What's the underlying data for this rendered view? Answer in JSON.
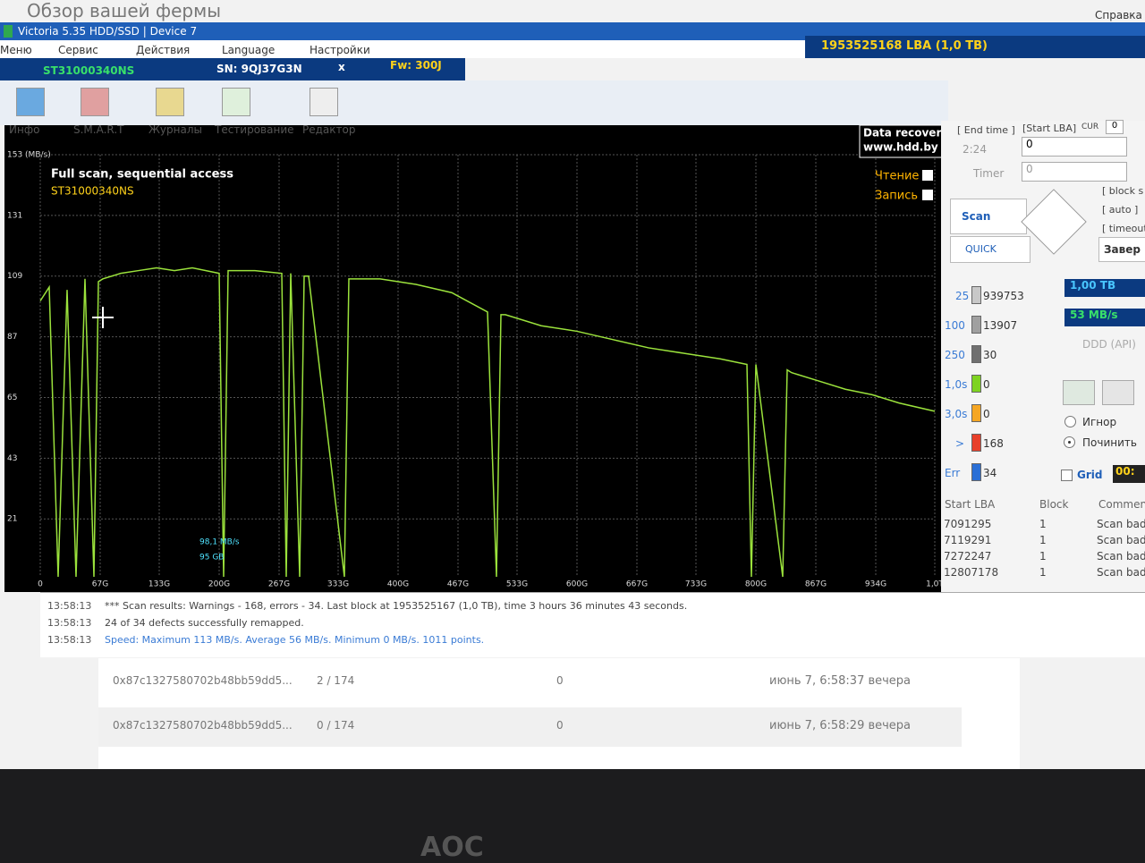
{
  "window": {
    "background_title": "Обзор вашей фермы",
    "help": "Справка",
    "title": "Victoria 5.35 HDD/SSD | Device 7",
    "capacity": "1953525168 LBA (1,0 TB)"
  },
  "menu": [
    "Меню",
    "Сервис",
    "Действия",
    "Language",
    "Настройки"
  ],
  "drive": {
    "model": "ST31000340NS",
    "serial": "SN: 9QJ37G3N",
    "close": "x",
    "firmware": "Fw: 300J"
  },
  "toolbar": [
    "Инфо",
    "S.M.A.R.T",
    "Журналы",
    "Тестирование",
    "Редактор"
  ],
  "chart_data": {
    "type": "line",
    "title": "Full scan, sequential access",
    "subtitle": "ST31000340NS",
    "badge": [
      "Data recovery",
      "www.hdd.by"
    ],
    "write_label": "Запись",
    "annotations": [
      "98,1 MB/s",
      "95 GB"
    ],
    "x": [
      0,
      10,
      20,
      30,
      40,
      50,
      60,
      65,
      70,
      90,
      110,
      130,
      150,
      170,
      200,
      205,
      210,
      240,
      270,
      275,
      280,
      290,
      295,
      300,
      340,
      345,
      350,
      380,
      420,
      460,
      500,
      510,
      515,
      520,
      560,
      600,
      640,
      680,
      720,
      760,
      790,
      795,
      800,
      830,
      835,
      840,
      870,
      900,
      930,
      960,
      1000
    ],
    "series": [
      {
        "name": "Чтение",
        "color": "#9be23c",
        "values": [
          100,
          105,
          0,
          104,
          0,
          108,
          0,
          107,
          108,
          110,
          111,
          112,
          111,
          112,
          110,
          0,
          111,
          111,
          110,
          0,
          110,
          0,
          109,
          109,
          0,
          108,
          108,
          108,
          106,
          103,
          96,
          0,
          95,
          95,
          91,
          89,
          86,
          83,
          81,
          79,
          77,
          0,
          77,
          0,
          75,
          74,
          71,
          68,
          66,
          63,
          60
        ]
      }
    ],
    "xlim": [
      0,
      1000
    ],
    "xticks": [
      {
        "value": 0,
        "label": "0"
      },
      {
        "value": 67,
        "label": "67G"
      },
      {
        "value": 133,
        "label": "133G"
      },
      {
        "value": 200,
        "label": "200G"
      },
      {
        "value": 267,
        "label": "267G"
      },
      {
        "value": 333,
        "label": "333G"
      },
      {
        "value": 400,
        "label": "400G"
      },
      {
        "value": 467,
        "label": "467G"
      },
      {
        "value": 533,
        "label": "533G"
      },
      {
        "value": 600,
        "label": "600G"
      },
      {
        "value": 667,
        "label": "667G"
      },
      {
        "value": 733,
        "label": "733G"
      },
      {
        "value": 800,
        "label": "800G"
      },
      {
        "value": 867,
        "label": "867G"
      },
      {
        "value": 934,
        "label": "934G"
      },
      {
        "value": 1000,
        "label": "1,0T"
      }
    ],
    "ylim": [
      0,
      153
    ],
    "yticks": [
      {
        "value": 153,
        "label": "153 (MB/s)"
      },
      131,
      109,
      87,
      65,
      43,
      21
    ],
    "grid": true
  },
  "right_panel": {
    "end_time": "[ End time ]",
    "start_lba": "[Start LBA]",
    "cur": "CUR",
    "cur_value": "0",
    "time_value": "2:24",
    "start_value": "0",
    "timer": "Timer",
    "timer_value": "0",
    "scan": "Scan",
    "quick": "QUICK",
    "options": [
      "[ block s",
      "[ auto ]",
      "[ timeout"
    ],
    "finish": "Завер",
    "blocks": [
      {
        "label": "25",
        "count": "939753",
        "color": "#c8c8c8"
      },
      {
        "label": "100",
        "count": "13907",
        "color": "#a0a0a0"
      },
      {
        "label": "250",
        "count": "30",
        "color": "#707070"
      },
      {
        "label": "1,0s",
        "count": "0",
        "color": "#7ed321"
      },
      {
        "label": "3,0s",
        "count": "0",
        "color": "#f5a623"
      },
      {
        "label": ">",
        "count": "168",
        "color": "#e8402a"
      },
      {
        "label": "Err",
        "count": "34",
        "color": "#2a6fd6"
      }
    ],
    "size": "1,00 TB",
    "speed": "53 MB/s",
    "mode": "DDD (API)",
    "ignore": "Игнор",
    "repair": "Починить",
    "grid": "Grid",
    "clock": "00:"
  },
  "defects": {
    "headers": [
      "Start LBA",
      "Block",
      "Commen"
    ],
    "rows": [
      [
        "7091295",
        "1",
        "Scan bad"
      ],
      [
        "7119291",
        "1",
        "Scan bad"
      ],
      [
        "7272247",
        "1",
        "Scan bad"
      ],
      [
        "12807178",
        "1",
        "Scan bad"
      ]
    ]
  },
  "log": [
    [
      "13:58:13",
      "*** Scan results: Warnings - 168, errors - 34. Last block at 1953525167 (1,0 TB), time 3 hours 36 minutes 43 seconds."
    ],
    [
      "13:58:13",
      "24 of 34 defects successfully remapped."
    ],
    [
      "13:58:13",
      "Speed: Maximum 113 MB/s. Average 56 MB/s. Minimum 0 MB/s. 1011 points."
    ]
  ],
  "background_table": [
    [
      "0x87c1327580702b48bb59dd5...",
      "2 / 174",
      "0",
      "июнь 7, 6:58:37 вечера"
    ],
    [
      "0x87c1327580702b48bb59dd5...",
      "0 / 174",
      "0",
      "июнь 7, 6:58:29 вечера"
    ]
  ],
  "monitor_brand": "AOC"
}
